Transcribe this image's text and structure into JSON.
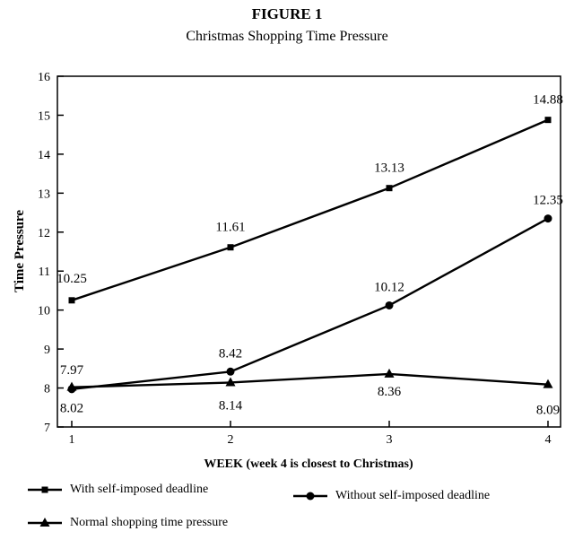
{
  "figure": {
    "title": "FIGURE 1",
    "subtitle": "Christmas Shopping Time Pressure"
  },
  "chart_data": {
    "type": "line",
    "title": "FIGURE 1",
    "subtitle": "Christmas Shopping Time Pressure",
    "xlabel": "WEEK (week 4 is closest to Christmas)",
    "ylabel": "Time Pressure",
    "x": [
      1,
      2,
      3,
      4
    ],
    "xticks": [
      "1",
      "2",
      "3",
      "4"
    ],
    "ylim": [
      7,
      16
    ],
    "yticks": [
      "7",
      "8",
      "9",
      "10",
      "11",
      "12",
      "13",
      "14",
      "15",
      "16"
    ],
    "grid": false,
    "legend": "bottom",
    "series": [
      {
        "name": "With self-imposed deadline",
        "marker": "square",
        "values": [
          10.25,
          11.61,
          13.13,
          14.88
        ],
        "labels": [
          "10.25",
          "11.61",
          "13.13",
          "14.88"
        ]
      },
      {
        "name": "Without self-imposed deadline",
        "marker": "circle",
        "values": [
          7.97,
          8.42,
          10.12,
          12.35
        ],
        "labels": [
          "7.97",
          "8.42",
          "10.12",
          "12.35"
        ]
      },
      {
        "name": "Normal shopping time pressure",
        "marker": "triangle",
        "values": [
          8.02,
          8.14,
          8.36,
          8.09
        ],
        "labels": [
          "8.02",
          "8.14",
          "8.36",
          "8.09"
        ]
      }
    ]
  }
}
